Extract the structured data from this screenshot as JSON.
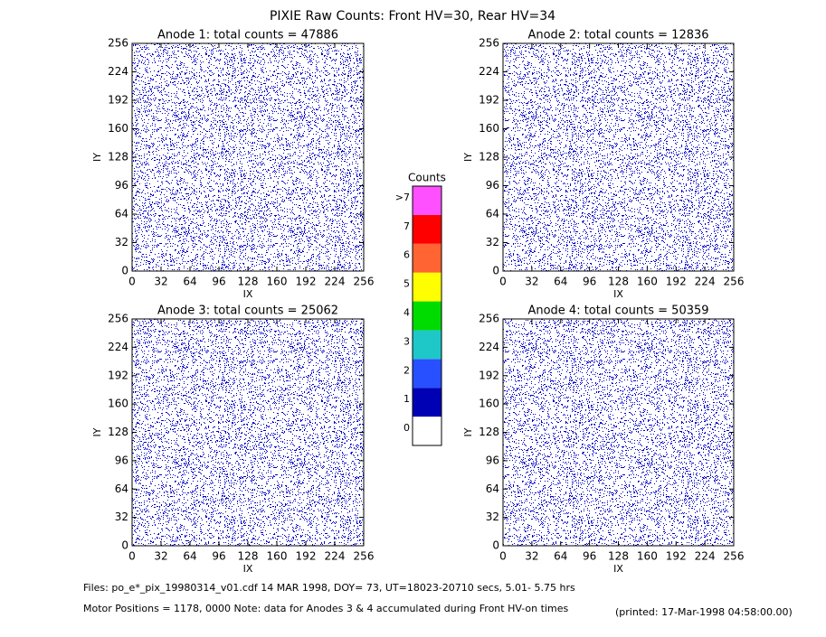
{
  "title": "PIXIE Raw Counts:  Front HV=30, Rear HV=34",
  "chart_data": [
    {
      "type": "heatmap",
      "title": "Anode 1: total counts = 47886",
      "xlabel": "IX",
      "ylabel": "IY",
      "xlim": [
        0,
        256
      ],
      "ylim": [
        0,
        256
      ],
      "xticks": [
        0,
        32,
        64,
        96,
        128,
        160,
        192,
        224,
        256
      ],
      "yticks": [
        0,
        32,
        64,
        96,
        128,
        160,
        192,
        224,
        256
      ]
    },
    {
      "type": "heatmap",
      "title": "Anode 2: total counts = 12836",
      "xlabel": "IX",
      "ylabel": "IY",
      "xlim": [
        0,
        256
      ],
      "ylim": [
        0,
        256
      ],
      "xticks": [
        0,
        32,
        64,
        96,
        128,
        160,
        192,
        224,
        256
      ],
      "yticks": [
        0,
        32,
        64,
        96,
        128,
        160,
        192,
        224,
        256
      ]
    },
    {
      "type": "heatmap",
      "title": "Anode 3: total counts = 25062",
      "xlabel": "IX",
      "ylabel": "IY",
      "xlim": [
        0,
        256
      ],
      "ylim": [
        0,
        256
      ],
      "xticks": [
        0,
        32,
        64,
        96,
        128,
        160,
        192,
        224,
        256
      ],
      "yticks": [
        0,
        32,
        64,
        96,
        128,
        160,
        192,
        224,
        256
      ]
    },
    {
      "type": "heatmap",
      "title": "Anode 4: total counts = 50359",
      "xlabel": "IX",
      "ylabel": "IY",
      "xlim": [
        0,
        256
      ],
      "ylim": [
        0,
        256
      ],
      "xticks": [
        0,
        32,
        64,
        96,
        128,
        160,
        192,
        224,
        256
      ],
      "yticks": [
        0,
        32,
        64,
        96,
        128,
        160,
        192,
        224,
        256
      ]
    }
  ],
  "colorbar": {
    "title": "Counts",
    "labels": [
      0,
      1,
      2,
      3,
      4,
      5,
      6,
      7,
      ">7"
    ],
    "colors": [
      "#ffffff",
      "#0000b4",
      "#2850ff",
      "#1ec8c8",
      "#00dc00",
      "#ffff00",
      "#ff6432",
      "#ff0000",
      "#ff50ff"
    ]
  },
  "footer": {
    "files": "Files: po_e*_pix_19980314_v01.cdf     14 MAR 1998, DOY= 73, UT=18023-20710 secs,  5.01- 5.75 hrs",
    "motor": "Motor Positions = 1178, 0000   Note: data for Anodes 3 & 4 accumulated during Front HV-on times",
    "printed": "(printed: 17-Mar-1998 04:58:00.00)"
  }
}
